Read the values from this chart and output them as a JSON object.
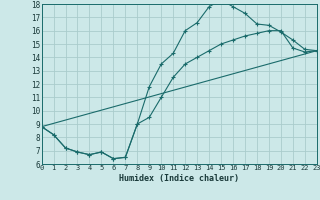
{
  "xlabel": "Humidex (Indice chaleur)",
  "bg_color": "#cce8e8",
  "grid_color": "#aacccc",
  "line_color": "#1a6b6b",
  "xmin": 0,
  "xmax": 23,
  "ymin": 6,
  "ymax": 18,
  "line1_x": [
    0,
    1,
    2,
    3,
    4,
    5,
    6,
    7,
    8,
    9,
    10,
    11,
    12,
    13,
    14,
    15,
    16,
    17,
    18,
    19,
    20,
    21,
    22,
    23
  ],
  "line1_y": [
    8.8,
    8.2,
    7.2,
    6.9,
    6.7,
    6.9,
    6.4,
    6.5,
    9.0,
    11.8,
    13.5,
    14.3,
    16.0,
    16.6,
    17.8,
    18.3,
    17.8,
    17.3,
    16.5,
    16.4,
    15.9,
    15.3,
    14.6,
    14.5
  ],
  "line2_x": [
    0,
    1,
    2,
    3,
    4,
    5,
    6,
    7,
    8,
    9,
    10,
    11,
    12,
    13,
    14,
    15,
    16,
    17,
    18,
    19,
    20,
    21,
    22,
    23
  ],
  "line2_y": [
    8.8,
    8.2,
    7.2,
    6.9,
    6.7,
    6.9,
    6.4,
    6.5,
    9.0,
    9.5,
    11.0,
    12.5,
    13.5,
    14.0,
    14.5,
    15.0,
    15.3,
    15.6,
    15.8,
    16.0,
    16.0,
    14.7,
    14.4,
    14.5
  ],
  "line3_x": [
    0,
    23
  ],
  "line3_y": [
    8.8,
    14.5
  ]
}
